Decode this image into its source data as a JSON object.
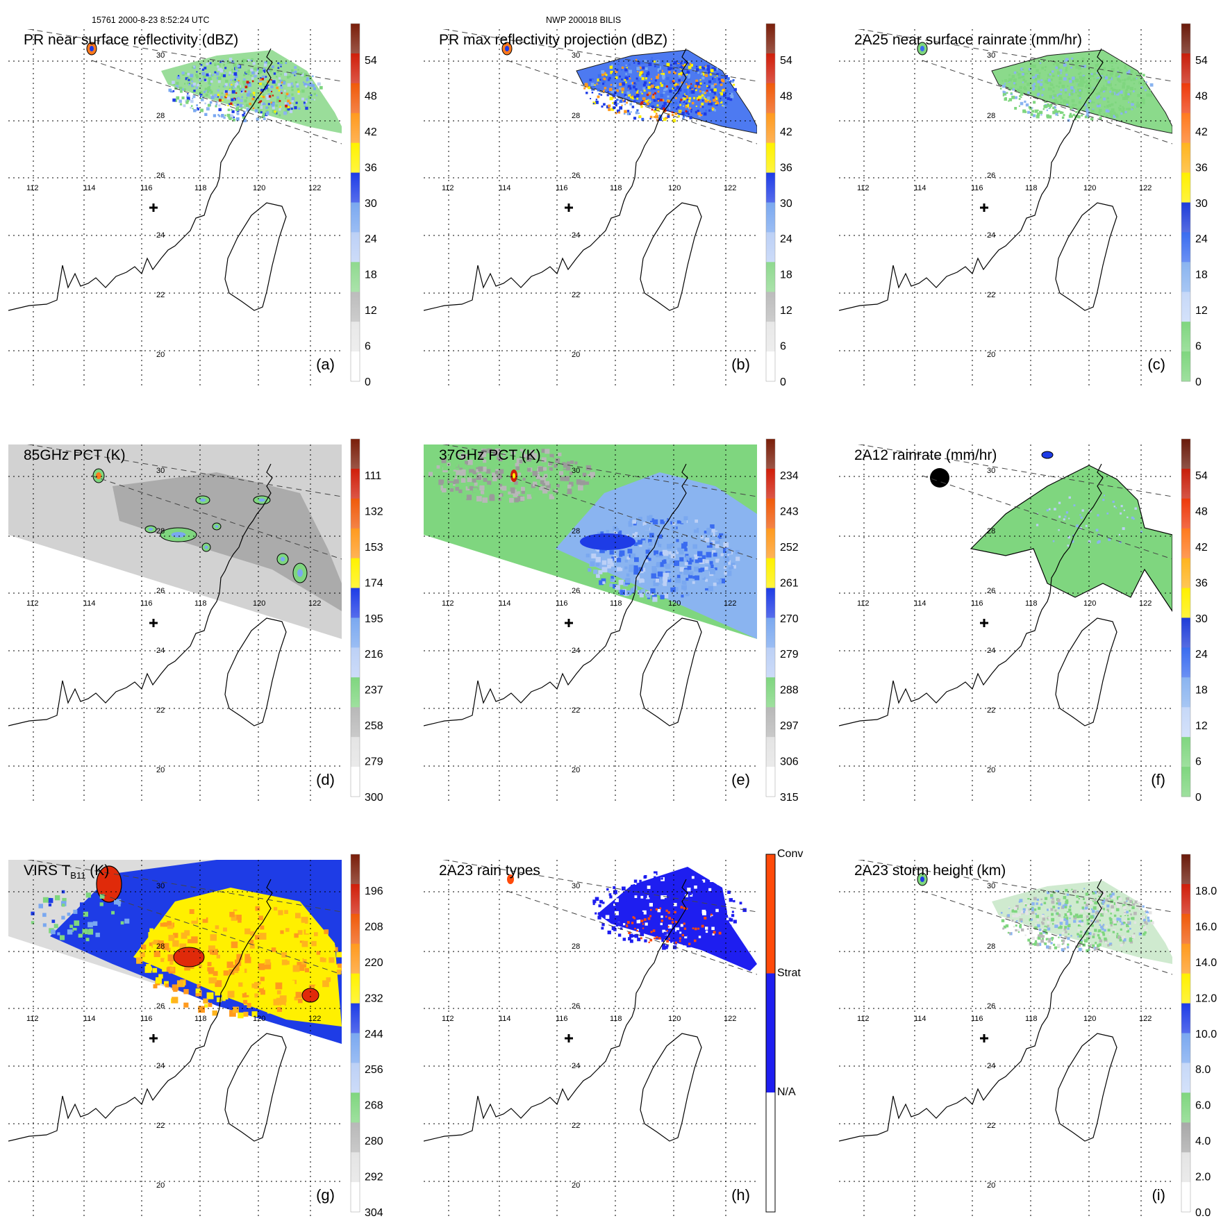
{
  "header": {
    "orbit_line": "15761 2000-8-23 8:52:24 UTC",
    "storm_line": "NWP 200018 BILIS"
  },
  "lon_labels": [
    "112",
    "114",
    "116",
    "118",
    "120",
    "122"
  ],
  "lat_labels": [
    "30",
    "28",
    "26",
    "24",
    "22",
    "20"
  ],
  "colors": {
    "green": "#7fd67f",
    "dark_green_outline": "#000000",
    "blue": "#1e3cf0",
    "light_blue": "#8ab4f0",
    "yellow": "#fff000",
    "orange": "#ff9a1e",
    "red": "#e02a0a",
    "gray": "#9a9a9a",
    "pale_gray": "#dcdcdc"
  },
  "panels": [
    {
      "letter": "(a)",
      "title": "PR near surface reflectivity (dBZ)",
      "scale": "pr",
      "field": "pr_swath",
      "colorbar": {
        "kind": "standard",
        "ticks": [
          "54",
          "48",
          "42",
          "36",
          "30",
          "24",
          "18",
          "12",
          "6",
          "0"
        ]
      }
    },
    {
      "letter": "(b)",
      "title": "PR max reflectivity projection (dBZ)",
      "scale": "pr",
      "field": "pr_max",
      "colorbar": {
        "kind": "standard",
        "ticks": [
          "54",
          "48",
          "42",
          "36",
          "30",
          "24",
          "18",
          "12",
          "6",
          "0"
        ]
      }
    },
    {
      "letter": "(c)",
      "title": "2A25 near surface rainrate (mm/hr)",
      "scale": "rain",
      "field": "rain_swath",
      "colorbar": {
        "kind": "rain",
        "ticks": [
          "54",
          "48",
          "42",
          "36",
          "30",
          "24",
          "18",
          "12",
          "6",
          "0"
        ]
      }
    },
    {
      "letter": "(d)",
      "title": "85GHz PCT (K)",
      "scale": "pct",
      "field": "pct85",
      "colorbar": {
        "kind": "standard",
        "ticks": [
          "111",
          "132",
          "153",
          "174",
          "195",
          "216",
          "237",
          "258",
          "279",
          "300"
        ]
      }
    },
    {
      "letter": "(e)",
      "title": "37GHz PCT (K)",
      "scale": "pct",
      "field": "pct37",
      "colorbar": {
        "kind": "standard",
        "ticks": [
          "234",
          "243",
          "252",
          "261",
          "270",
          "279",
          "288",
          "297",
          "306",
          "315"
        ]
      }
    },
    {
      "letter": "(f)",
      "title": "2A12 rainrate (mm/hr)",
      "scale": "rain",
      "field": "tmi_rain",
      "colorbar": {
        "kind": "rain",
        "ticks": [
          "54",
          "48",
          "42",
          "36",
          "30",
          "24",
          "18",
          "12",
          "6",
          "0"
        ]
      }
    },
    {
      "letter": "(g)",
      "title": "VIRS T",
      "title_sub": "B11",
      "title_tail": " (K)",
      "scale": "virs",
      "field": "virs",
      "colorbar": {
        "kind": "standard",
        "ticks": [
          "196",
          "208",
          "220",
          "232",
          "244",
          "256",
          "268",
          "280",
          "292",
          "304"
        ]
      }
    },
    {
      "letter": "(h)",
      "title": "2A23 rain types",
      "scale": "types",
      "field": "rain_types",
      "colorbar": {
        "kind": "types",
        "ticks": [
          "Conv",
          "Strat",
          "N/A"
        ]
      }
    },
    {
      "letter": "(i)",
      "title": "2A23 storm height (km)",
      "scale": "height",
      "field": "storm_height",
      "colorbar": {
        "kind": "height",
        "ticks": [
          "18.0",
          "16.0",
          "14.0",
          "12.0",
          "10.0",
          "8.0",
          "6.0",
          "4.0",
          "2.0",
          "0.0"
        ]
      }
    }
  ]
}
